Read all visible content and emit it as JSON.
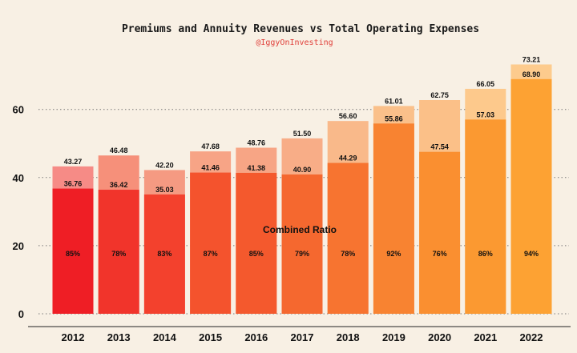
{
  "chart_data": {
    "type": "bar",
    "title": "Premiums and Annuity Revenues vs Total Operating Expenses",
    "subtitle": "@IggyOnInvesting",
    "annotation": "Combined Ratio",
    "categories": [
      "2012",
      "2013",
      "2014",
      "2015",
      "2016",
      "2017",
      "2018",
      "2019",
      "2020",
      "2021",
      "2022"
    ],
    "series": [
      {
        "values": [
          43.27,
          46.48,
          42.2,
          47.68,
          48.76,
          51.5,
          56.6,
          61.01,
          62.75,
          66.05,
          73.21
        ]
      },
      {
        "values": [
          36.76,
          36.42,
          35.03,
          41.46,
          41.38,
          40.9,
          44.29,
          55.86,
          47.54,
          57.03,
          68.9
        ]
      }
    ],
    "value_labels": {
      "back": [
        "43.27",
        "46.48",
        "42.20",
        "47.68",
        "48.76",
        "51.50",
        "56.60",
        "61.01",
        "62.75",
        "66.05",
        "73.21"
      ],
      "front": [
        "36.76",
        "36.42",
        "35.03",
        "41.46",
        "41.38",
        "40.90",
        "44.29",
        "55.86",
        "47.54",
        "57.03",
        "68.90"
      ]
    },
    "combined_ratio": [
      "85%",
      "78%",
      "83%",
      "87%",
      "85%",
      "79%",
      "78%",
      "92%",
      "76%",
      "86%",
      "94%"
    ],
    "y_ticks": [
      0,
      20,
      40,
      60
    ],
    "ylim": [
      0,
      75
    ],
    "grid": "horizontal dotted",
    "colors": {
      "back": [
        "#f68b86",
        "#f6907a",
        "#f59a82",
        "#f7a486",
        "#f7a585",
        "#f8ad87",
        "#f9b98a",
        "#fac08a",
        "#fbc088",
        "#fdc98c",
        "#fdcb8d"
      ],
      "front": [
        "#ef1e25",
        "#f1342b",
        "#f3412d",
        "#f4532d",
        "#f4592d",
        "#f5682f",
        "#f77430",
        "#f88331",
        "#fa8f30",
        "#fb9931",
        "#fda233"
      ]
    }
  }
}
